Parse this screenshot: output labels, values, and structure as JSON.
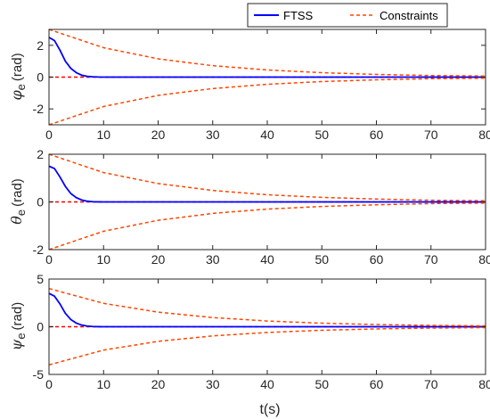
{
  "colors": {
    "ftss": "#0000ff",
    "constraints": "#ff4500",
    "zero_line": "#ff0000",
    "axis": "#262626"
  },
  "legend": {
    "placement": "top-right",
    "entries": [
      "FTSS",
      "Constraints"
    ]
  },
  "chart_data": [
    {
      "type": "line",
      "ylabel_symbol": "φ",
      "ylabel_sub": "e",
      "ylabel_unit": "(rad)",
      "xlabel": "",
      "xlim": [
        0,
        80
      ],
      "ylim": [
        -3,
        3
      ],
      "xticks": [
        0,
        10,
        20,
        30,
        40,
        50,
        60,
        70,
        80
      ],
      "yticks": [
        -2,
        0,
        2
      ],
      "grid": false,
      "series": [
        {
          "name": "FTSS",
          "style": "solid",
          "x": [
            0,
            1,
            2,
            3,
            4,
            5,
            6,
            7,
            8,
            9,
            10,
            80
          ],
          "y": [
            2.5,
            2.3,
            1.7,
            1.0,
            0.55,
            0.28,
            0.12,
            0.05,
            0.02,
            0.005,
            0,
            0
          ]
        },
        {
          "name": "Constraints",
          "style": "dashed",
          "x": [
            0,
            10,
            20,
            30,
            40,
            50,
            60,
            70,
            80
          ],
          "y": [
            3.0,
            1.85,
            1.15,
            0.72,
            0.45,
            0.28,
            0.17,
            0.1,
            0.07
          ]
        },
        {
          "name": "Constraints",
          "style": "dashed",
          "x": [
            0,
            10,
            20,
            30,
            40,
            50,
            60,
            70,
            80
          ],
          "y": [
            -3.0,
            -1.85,
            -1.15,
            -0.72,
            -0.45,
            -0.28,
            -0.17,
            -0.1,
            -0.07
          ]
        }
      ]
    },
    {
      "type": "line",
      "ylabel_symbol": "θ",
      "ylabel_sub": "e",
      "ylabel_unit": "(rad)",
      "xlabel": "",
      "xlim": [
        0,
        80
      ],
      "ylim": [
        -2,
        2
      ],
      "xticks": [
        0,
        10,
        20,
        30,
        40,
        50,
        60,
        70,
        80
      ],
      "yticks": [
        -2,
        0,
        2
      ],
      "grid": false,
      "series": [
        {
          "name": "FTSS",
          "style": "solid",
          "x": [
            0,
            1,
            2,
            3,
            4,
            5,
            6,
            7,
            8,
            9,
            10,
            80
          ],
          "y": [
            1.5,
            1.4,
            1.05,
            0.65,
            0.35,
            0.18,
            0.08,
            0.03,
            0.01,
            0.003,
            0,
            0
          ]
        },
        {
          "name": "Constraints",
          "style": "dashed",
          "x": [
            0,
            10,
            20,
            30,
            40,
            50,
            60,
            70,
            80
          ],
          "y": [
            2.0,
            1.23,
            0.77,
            0.48,
            0.3,
            0.19,
            0.12,
            0.07,
            0.05
          ]
        },
        {
          "name": "Constraints",
          "style": "dashed",
          "x": [
            0,
            10,
            20,
            30,
            40,
            50,
            60,
            70,
            80
          ],
          "y": [
            -2.0,
            -1.23,
            -0.77,
            -0.48,
            -0.3,
            -0.19,
            -0.12,
            -0.07,
            -0.05
          ]
        }
      ]
    },
    {
      "type": "line",
      "ylabel_symbol": "ψ",
      "ylabel_sub": "e",
      "ylabel_unit": "(rad)",
      "xlabel": "t(s)",
      "xlim": [
        0,
        80
      ],
      "ylim": [
        -5,
        5
      ],
      "xticks": [
        0,
        10,
        20,
        30,
        40,
        50,
        60,
        70,
        80
      ],
      "yticks": [
        -5,
        0,
        5
      ],
      "grid": false,
      "series": [
        {
          "name": "FTSS",
          "style": "solid",
          "x": [
            0,
            1,
            2,
            3,
            4,
            5,
            6,
            7,
            8,
            9,
            10,
            80
          ],
          "y": [
            3.5,
            3.2,
            2.4,
            1.4,
            0.75,
            0.38,
            0.17,
            0.07,
            0.025,
            0.007,
            0,
            0
          ]
        },
        {
          "name": "Constraints",
          "style": "dashed",
          "x": [
            0,
            10,
            20,
            30,
            40,
            50,
            60,
            70,
            80
          ],
          "y": [
            4.0,
            2.45,
            1.53,
            0.96,
            0.6,
            0.37,
            0.23,
            0.14,
            0.09
          ]
        },
        {
          "name": "Constraints",
          "style": "dashed",
          "x": [
            0,
            10,
            20,
            30,
            40,
            50,
            60,
            70,
            80
          ],
          "y": [
            -4.0,
            -2.45,
            -1.53,
            -0.96,
            -0.6,
            -0.37,
            -0.23,
            -0.14,
            -0.09
          ]
        }
      ]
    }
  ]
}
